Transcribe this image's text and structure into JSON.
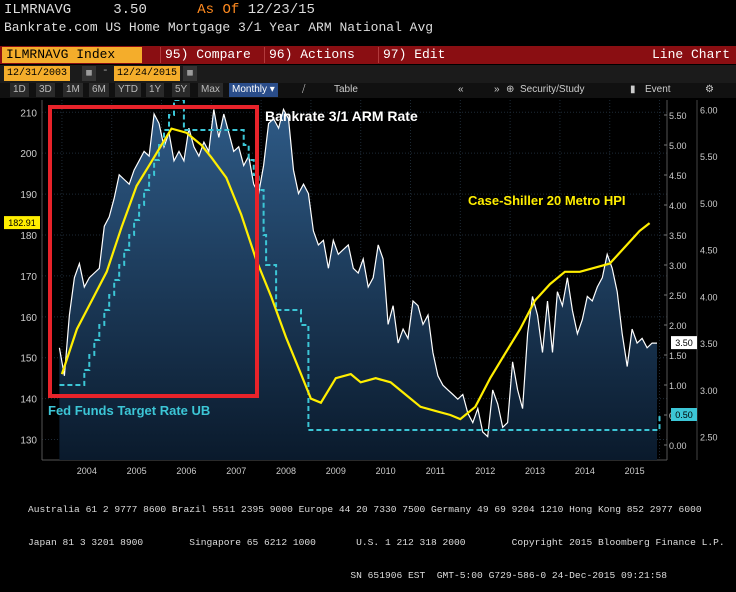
{
  "header": {
    "ticker": "ILMRNAVG",
    "value": "3.50",
    "as_of_label": "As Of",
    "as_of_date": "12/23/15",
    "description": "Bankrate.com US Home Mortgage 3/1 Year ARM National Avg"
  },
  "command_bar": {
    "index_label": "ILMRNAVG Index",
    "compare": "95) Compare",
    "actions": "96) Actions",
    "edit": "97) Edit",
    "chart_type": "Line Chart"
  },
  "date_bar": {
    "start": "12/31/2003",
    "end": "12/24/2015"
  },
  "period_buttons": [
    "1D",
    "3D",
    "1M",
    "6M",
    "YTD",
    "1Y",
    "5Y",
    "Max"
  ],
  "frequency": "Monthly",
  "table_label": "Table",
  "security_study": "Security/Study",
  "event_label": "Event",
  "annotations": {
    "arm": "Bankrate 3/1 ARM Rate",
    "hpi": "Case-Shiller 20 Metro HPI",
    "ffr": "Fed Funds Target Rate UB"
  },
  "colors": {
    "hpi": "#ffee00",
    "ffr": "#3cc6d6",
    "arm_line": "#ffffff",
    "area_top": "#2e5a86",
    "area_bottom": "#0a1a2c",
    "highlight_box": "#e8232a",
    "annotation_white": "#ffffff"
  },
  "chart_data": {
    "type": "line",
    "x_ticks": [
      "2004",
      "2005",
      "2006",
      "2007",
      "2008",
      "2009",
      "2010",
      "2011",
      "2012",
      "2013",
      "2014",
      "2015"
    ],
    "left_axis": {
      "ticks": [
        130,
        140,
        150,
        160,
        170,
        180,
        190,
        200,
        210
      ],
      "ylim": [
        125,
        213
      ]
    },
    "mid_axis": {
      "ticks": [
        "0.00",
        "0.50",
        "1.00",
        "1.50",
        "2.00",
        "2.50",
        "3.00",
        "3.50",
        "4.00",
        "4.50",
        "5.00",
        "5.50"
      ],
      "ylim": [
        -0.25,
        5.75
      ]
    },
    "right_axis": {
      "ticks": [
        "2.50",
        "3.00",
        "3.50",
        "4.00",
        "4.50",
        "5.00",
        "5.50",
        "6.00"
      ],
      "ylim": [
        2.25,
        6.1
      ]
    },
    "labels": {
      "hpi_last": "182.91",
      "arm_last": "3.50",
      "ffr_last": "0.50"
    },
    "series": [
      {
        "name": "Bankrate 3/1 ARM Rate",
        "axis": "right",
        "x": [
          2003.95,
          2004.05,
          2004.15,
          2004.25,
          2004.35,
          2004.45,
          2004.55,
          2004.65,
          2004.75,
          2004.85,
          2004.95,
          2005.05,
          2005.15,
          2005.25,
          2005.35,
          2005.45,
          2005.55,
          2005.65,
          2005.75,
          2005.85,
          2005.95,
          2006.05,
          2006.15,
          2006.25,
          2006.35,
          2006.45,
          2006.55,
          2006.65,
          2006.75,
          2006.85,
          2006.95,
          2007.05,
          2007.15,
          2007.25,
          2007.35,
          2007.45,
          2007.55,
          2007.65,
          2007.75,
          2007.85,
          2007.95,
          2008.05,
          2008.15,
          2008.25,
          2008.35,
          2008.45,
          2008.55,
          2008.65,
          2008.75,
          2008.85,
          2008.95,
          2009.05,
          2009.15,
          2009.25,
          2009.35,
          2009.45,
          2009.55,
          2009.65,
          2009.75,
          2009.85,
          2009.95,
          2010.05,
          2010.15,
          2010.25,
          2010.35,
          2010.45,
          2010.55,
          2010.65,
          2010.75,
          2010.85,
          2010.95,
          2011.05,
          2011.15,
          2011.25,
          2011.35,
          2011.45,
          2011.55,
          2011.65,
          2011.75,
          2011.85,
          2011.95,
          2012.05,
          2012.15,
          2012.25,
          2012.35,
          2012.45,
          2012.55,
          2012.65,
          2012.75,
          2012.85,
          2012.95,
          2013.05,
          2013.15,
          2013.25,
          2013.35,
          2013.45,
          2013.55,
          2013.65,
          2013.75,
          2013.85,
          2013.95,
          2014.05,
          2014.15,
          2014.25,
          2014.35,
          2014.45,
          2014.55,
          2014.65,
          2014.75,
          2014.85,
          2014.95,
          2015.05,
          2015.15,
          2015.25,
          2015.35,
          2015.45,
          2015.55,
          2015.65,
          2015.75,
          2015.85,
          2015.95
        ],
        "values": [
          3.45,
          3.15,
          3.8,
          4.2,
          4.35,
          4.1,
          4.2,
          4.25,
          4.3,
          4.75,
          4.85,
          5.05,
          5.3,
          5.25,
          5.2,
          5.35,
          5.45,
          5.55,
          5.5,
          5.95,
          5.85,
          5.6,
          5.75,
          5.45,
          5.55,
          5.45,
          5.8,
          5.6,
          5.5,
          5.65,
          5.55,
          6.0,
          5.7,
          5.95,
          5.75,
          5.55,
          5.6,
          5.4,
          5.5,
          5.2,
          5.1,
          5.4,
          5.85,
          5.9,
          5.8,
          6.0,
          5.9,
          5.35,
          5.1,
          5.2,
          5.1,
          4.7,
          4.55,
          4.6,
          4.3,
          4.6,
          4.45,
          4.5,
          4.55,
          4.3,
          4.25,
          4.4,
          4.1,
          4.2,
          4.55,
          4.4,
          3.7,
          3.9,
          3.5,
          3.65,
          3.55,
          3.95,
          3.9,
          3.7,
          3.8,
          3.4,
          3.15,
          3.05,
          3.0,
          2.95,
          2.9,
          2.95,
          2.75,
          2.65,
          2.8,
          2.55,
          2.5,
          3.0,
          2.85,
          2.6,
          2.65,
          3.3,
          3.0,
          2.8,
          3.6,
          4.0,
          3.8,
          3.4,
          3.95,
          3.4,
          4.05,
          3.9,
          4.2,
          3.85,
          3.6,
          3.75,
          4.0,
          3.95,
          4.1,
          4.2,
          4.45,
          4.3,
          4.05,
          3.6,
          3.25,
          3.65,
          3.5,
          3.55,
          3.45,
          3.5,
          3.5
        ]
      },
      {
        "name": "Case-Shiller 20 Metro HPI",
        "axis": "left",
        "x": [
          2004.0,
          2004.3,
          2004.6,
          2004.9,
          2005.2,
          2005.5,
          2005.8,
          2006.0,
          2006.2,
          2006.5,
          2006.8,
          2007.0,
          2007.3,
          2007.6,
          2007.9,
          2008.2,
          2008.5,
          2008.8,
          2009.0,
          2009.2,
          2009.5,
          2009.8,
          2010.0,
          2010.3,
          2010.6,
          2010.9,
          2011.2,
          2011.5,
          2011.8,
          2012.0,
          2012.3,
          2012.6,
          2012.9,
          2013.2,
          2013.5,
          2013.8,
          2014.1,
          2014.4,
          2014.7,
          2015.0,
          2015.3,
          2015.6,
          2015.8
        ],
        "values": [
          146,
          157,
          164,
          171,
          182,
          192,
          198,
          202,
          206,
          205,
          202,
          199,
          194,
          185,
          174,
          165,
          155,
          146,
          140,
          139,
          145,
          146,
          144,
          145,
          144,
          141,
          138,
          137,
          136,
          135,
          138,
          145,
          151,
          157,
          164,
          168,
          171,
          171,
          172,
          173,
          177,
          181,
          182.9
        ]
      },
      {
        "name": "Fed Funds Target Rate UB",
        "axis": "mid",
        "step": true,
        "x": [
          2003.95,
          2004.45,
          2004.55,
          2004.65,
          2004.75,
          2004.85,
          2004.95,
          2005.05,
          2005.15,
          2005.25,
          2005.35,
          2005.45,
          2005.55,
          2005.65,
          2005.75,
          2005.85,
          2005.95,
          2006.05,
          2006.15,
          2006.25,
          2006.35,
          2006.45,
          2007.65,
          2007.75,
          2007.85,
          2007.95,
          2008.05,
          2008.1,
          2008.3,
          2008.8,
          2008.95,
          2015.9,
          2016.0
        ],
        "values": [
          1.0,
          1.25,
          1.5,
          1.75,
          2.0,
          2.25,
          2.5,
          2.75,
          3.0,
          3.25,
          3.5,
          3.75,
          4.0,
          4.25,
          4.5,
          4.75,
          5.0,
          5.25,
          5.5,
          5.75,
          5.75,
          5.25,
          5.0,
          4.75,
          4.5,
          4.25,
          3.5,
          3.0,
          2.25,
          2.0,
          0.25,
          0.25,
          0.5
        ]
      }
    ]
  }
}
